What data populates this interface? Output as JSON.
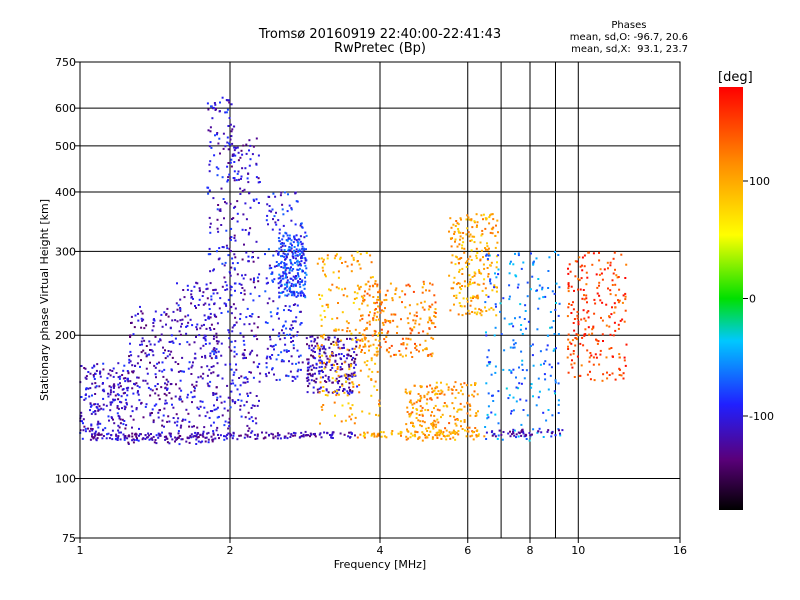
{
  "chart_data": {
    "type": "scatter",
    "title": "Tromsø 20160919 22:40:00-22:41:43",
    "subtitle": "RwPretec (Bp)",
    "xlabel": "Frequency [MHz]",
    "ylabel": "Stationary phase Virtual Height [km]",
    "x_scale": "log",
    "y_scale": "log",
    "xlim": [
      1,
      16
    ],
    "ylim": [
      75,
      750
    ],
    "x_ticks": [
      1,
      2,
      4,
      6,
      8,
      10,
      16
    ],
    "x_tick_labels": [
      "1",
      "2",
      "4",
      "6",
      "8",
      "10",
      "16"
    ],
    "x_gridlines": [
      2,
      4,
      6,
      7,
      8,
      9,
      10
    ],
    "y_ticks": [
      75,
      100,
      200,
      300,
      400,
      500,
      600,
      750
    ],
    "y_tick_labels": [
      "75",
      "100",
      "200",
      "300",
      "400",
      "500",
      "600",
      "750"
    ],
    "y_gridlines": [
      100,
      200,
      300,
      400,
      500,
      600
    ],
    "grid": true,
    "colorbar": {
      "label": "[deg]",
      "range": [
        -180,
        180
      ],
      "ticks": [
        100,
        0,
        -100
      ],
      "tick_labels": [
        "100",
        "0",
        "-100"
      ]
    },
    "phases_box": {
      "heading": "Phases",
      "line_o": "mean, sd,O: -96.7, 20.6",
      "line_x": "mean, sd,X:  93.1, 23.7"
    },
    "series": [
      {
        "description_color": "blue-purple",
        "clusters": [
          {
            "x": [
              1.0,
              1.25
            ],
            "y": [
              120,
              175
            ],
            "phase": -110
          },
          {
            "x": [
              1.25,
              1.55
            ],
            "y": [
              118,
              230
            ],
            "phase": -115
          },
          {
            "x": [
              1.55,
              1.9
            ],
            "y": [
              118,
              260
            ],
            "phase": -110
          },
          {
            "x": [
              1.8,
              2.05
            ],
            "y": [
              120,
              640
            ],
            "phase": -105
          },
          {
            "x": [
              2.0,
              2.3
            ],
            "y": [
              125,
              520
            ],
            "phase": -110
          },
          {
            "x": [
              2.35,
              2.8
            ],
            "y": [
              160,
              400
            ],
            "phase": -95
          },
          {
            "x": [
              2.5,
              2.85
            ],
            "y": [
              240,
              330
            ],
            "phase": -80
          },
          {
            "x": [
              2.85,
              3.6
            ],
            "y": [
              150,
              200
            ],
            "phase": -120
          }
        ]
      },
      {
        "description_color": "yellow-orange",
        "clusters": [
          {
            "x": [
              3.0,
              4.0
            ],
            "y": [
              130,
              300
            ],
            "phase": 100
          },
          {
            "x": [
              3.6,
              5.2
            ],
            "y": [
              180,
              260
            ],
            "phase": 120
          },
          {
            "x": [
              4.5,
              6.3
            ],
            "y": [
              120,
              160
            ],
            "phase": 110
          },
          {
            "x": [
              5.5,
              6.9
            ],
            "y": [
              220,
              360
            ],
            "phase": 100
          }
        ]
      },
      {
        "description_color": "sparse mixed",
        "clusters": [
          {
            "x": [
              6.5,
              9.2
            ],
            "y": [
              120,
              300
            ],
            "phase": -60
          },
          {
            "x": [
              9.5,
              12.5
            ],
            "y": [
              160,
              300
            ],
            "phase": 150
          }
        ]
      }
    ],
    "baseline_trace": {
      "x": [
        1.05,
        9.3
      ],
      "y_start": 122,
      "y_end": 125,
      "phase": -120
    }
  }
}
